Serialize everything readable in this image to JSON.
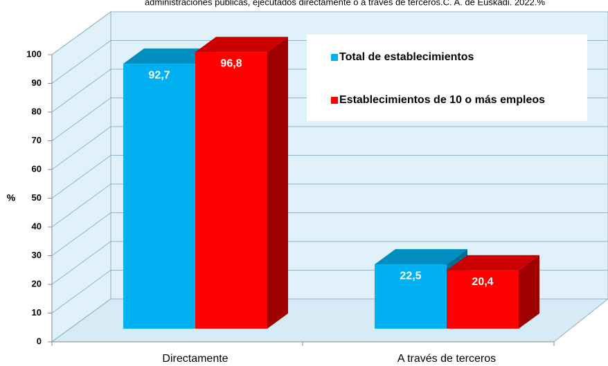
{
  "chart_data": {
    "type": "bar3d",
    "title": "administraciones públicas, ejecutados directamente o a través de terceros.C. A. de Euskadi. 2022.%",
    "y_label": "%",
    "categories": [
      "Directamente",
      "A través de terceros"
    ],
    "series": [
      {
        "name": "Total de establecimientos",
        "color": "#00b0f0",
        "values": [
          92.7,
          22.5
        ],
        "value_labels": [
          "92,7",
          "22,5"
        ]
      },
      {
        "name": "Establecimientos de 10 o más empleos",
        "color": "#ff0000",
        "values": [
          96.8,
          20.4
        ],
        "value_labels": [
          "96,8",
          "20,4"
        ]
      }
    ],
    "ylim": [
      0,
      100
    ],
    "yticks": [
      0,
      10,
      20,
      30,
      40,
      50,
      60,
      70,
      80,
      90,
      100
    ],
    "grid": true,
    "legend": "top-right"
  }
}
